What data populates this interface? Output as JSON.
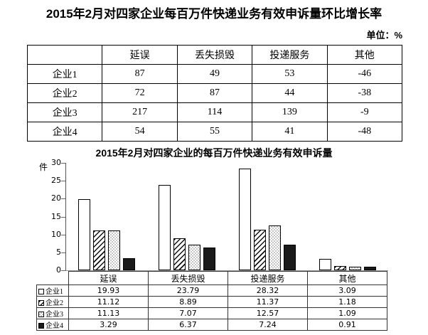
{
  "page": {
    "title": "2015年2月对四家企业每百万件快递业务有效申诉量环比增长率",
    "unit_label": "单位：%"
  },
  "growth_table": {
    "columns": [
      "",
      "延误",
      "丢失损毁",
      "投递服务",
      "其他"
    ],
    "rows": [
      {
        "label": "企业1",
        "values": [
          "87",
          "49",
          "53",
          "-46"
        ]
      },
      {
        "label": "企业2",
        "values": [
          "72",
          "87",
          "44",
          "-38"
        ]
      },
      {
        "label": "企业3",
        "values": [
          "217",
          "114",
          "139",
          "-9"
        ]
      },
      {
        "label": "企业4",
        "values": [
          "54",
          "55",
          "41",
          "-48"
        ]
      }
    ]
  },
  "chart": {
    "title": "2015年2月对四家企业的每百万件快递业务有效申诉量",
    "y_axis_unit": "件",
    "y_ticks": [
      30,
      25,
      20,
      15,
      10,
      5,
      0
    ]
  },
  "chart_data": {
    "type": "bar",
    "categories": [
      "延误",
      "丢失损毁",
      "投递服务",
      "其他"
    ],
    "series": [
      {
        "name": "企业1",
        "pattern": "white",
        "values": [
          19.93,
          23.79,
          28.32,
          3.09
        ]
      },
      {
        "name": "企业2",
        "pattern": "diagonal-hatch",
        "values": [
          11.12,
          8.89,
          11.37,
          1.18
        ]
      },
      {
        "name": "企业3",
        "pattern": "dotted",
        "values": [
          11.13,
          7.07,
          12.57,
          1.09
        ]
      },
      {
        "name": "企业4",
        "pattern": "solid-black",
        "values": [
          3.29,
          6.37,
          7.24,
          0.91
        ]
      }
    ],
    "title": "2015年2月对四家企业的每百万件快递业务有效申诉量",
    "xlabel": "",
    "ylabel": "件",
    "ylim": [
      0,
      30
    ],
    "grid": false,
    "legend_position": "table-below-chart"
  },
  "colors": {
    "text": "#000000",
    "bar_border": "#000000",
    "solid_bar": "#1a1a1a",
    "dot_pattern": "#c8c8c8",
    "table_border": "#333333"
  }
}
